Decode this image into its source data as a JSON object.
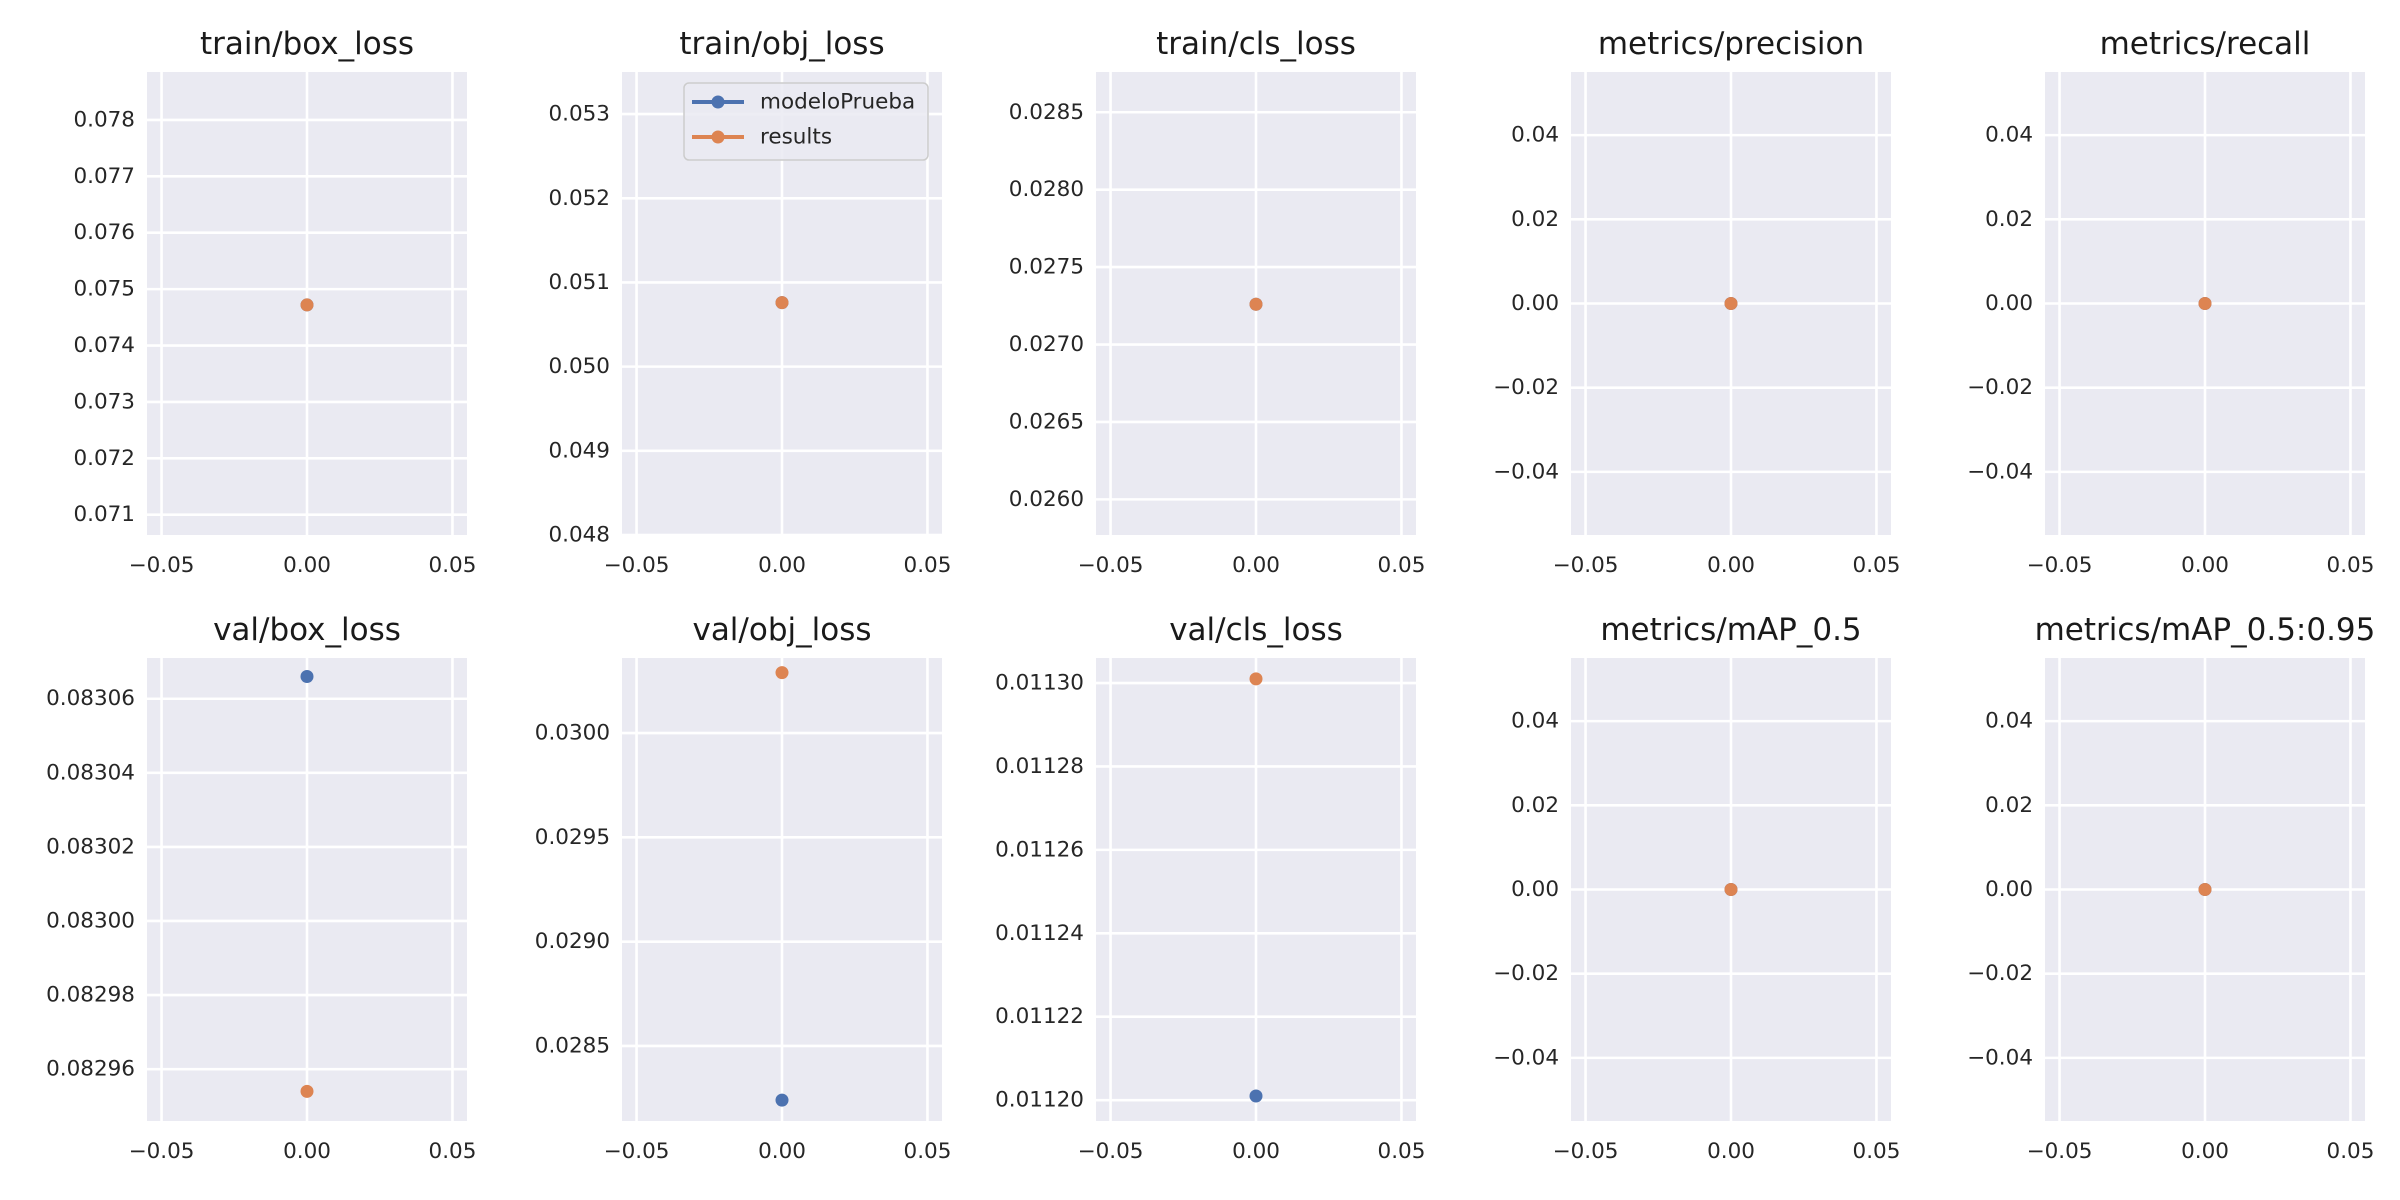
{
  "figure": {
    "facecolor": "#ffffff",
    "axes_facecolor": "#eaeaf2",
    "grid_color": "#ffffff"
  },
  "legend": {
    "placement": "upper-right of train/obj_loss panel",
    "entries": [
      {
        "label": "modeloPrueba",
        "color": "#4c72b0"
      },
      {
        "label": "results",
        "color": "#dd8452"
      }
    ]
  },
  "chart_data": [
    {
      "type": "line",
      "title": "train/box_loss",
      "xlim": [
        -0.055,
        0.055
      ],
      "xticks": [
        -0.05,
        0.0,
        0.05
      ],
      "xtick_labels": [
        "−0.05",
        "0.00",
        "0.05"
      ],
      "ylim": [
        0.07064,
        0.07885
      ],
      "yticks": [
        0.071,
        0.072,
        0.073,
        0.074,
        0.075,
        0.076,
        0.077,
        0.078
      ],
      "ytick_labels": [
        "0.071",
        "0.072",
        "0.073",
        "0.074",
        "0.075",
        "0.076",
        "0.077",
        "0.078"
      ],
      "grid": true,
      "series": [
        {
          "name": "modeloPrueba",
          "color": "#4c72b0",
          "x": [
            0
          ],
          "y": [
            0.07472
          ]
        },
        {
          "name": "results",
          "color": "#dd8452",
          "x": [
            0
          ],
          "y": [
            0.07472
          ]
        }
      ]
    },
    {
      "type": "line",
      "title": "train/obj_loss",
      "xlim": [
        -0.055,
        0.055
      ],
      "xticks": [
        -0.05,
        0.0,
        0.05
      ],
      "xtick_labels": [
        "−0.05",
        "0.00",
        "0.05"
      ],
      "ylim": [
        0.048,
        0.0535
      ],
      "yticks": [
        0.048,
        0.049,
        0.05,
        0.051,
        0.052,
        0.053
      ],
      "ytick_labels": [
        "0.048",
        "0.049",
        "0.050",
        "0.051",
        "0.052",
        "0.053"
      ],
      "grid": true,
      "series": [
        {
          "name": "modeloPrueba",
          "color": "#4c72b0",
          "x": [
            0
          ],
          "y": [
            0.05076
          ]
        },
        {
          "name": "results",
          "color": "#dd8452",
          "x": [
            0
          ],
          "y": [
            0.05076
          ]
        }
      ]
    },
    {
      "type": "line",
      "title": "train/cls_loss",
      "xlim": [
        -0.055,
        0.055
      ],
      "xticks": [
        -0.05,
        0.0,
        0.05
      ],
      "xtick_labels": [
        "−0.05",
        "0.00",
        "0.05"
      ],
      "ylim": [
        0.02577,
        0.02876
      ],
      "yticks": [
        0.026,
        0.0265,
        0.027,
        0.0275,
        0.028,
        0.0285
      ],
      "ytick_labels": [
        "0.0260",
        "0.0265",
        "0.0270",
        "0.0275",
        "0.0280",
        "0.0285"
      ],
      "grid": true,
      "series": [
        {
          "name": "modeloPrueba",
          "color": "#4c72b0",
          "x": [
            0
          ],
          "y": [
            0.02726
          ]
        },
        {
          "name": "results",
          "color": "#dd8452",
          "x": [
            0
          ],
          "y": [
            0.02726
          ]
        }
      ]
    },
    {
      "type": "line",
      "title": "metrics/precision",
      "xlim": [
        -0.055,
        0.055
      ],
      "xticks": [
        -0.05,
        0.0,
        0.05
      ],
      "xtick_labels": [
        "−0.05",
        "0.00",
        "0.05"
      ],
      "ylim": [
        -0.055,
        0.055
      ],
      "yticks": [
        -0.04,
        -0.02,
        0.0,
        0.02,
        0.04
      ],
      "ytick_labels": [
        "−0.04",
        "−0.02",
        "0.00",
        "0.02",
        "0.04"
      ],
      "grid": true,
      "series": [
        {
          "name": "modeloPrueba",
          "color": "#4c72b0",
          "x": [
            0
          ],
          "y": [
            0.0
          ]
        },
        {
          "name": "results",
          "color": "#dd8452",
          "x": [
            0
          ],
          "y": [
            0.0
          ]
        }
      ]
    },
    {
      "type": "line",
      "title": "metrics/recall",
      "xlim": [
        -0.055,
        0.055
      ],
      "xticks": [
        -0.05,
        0.0,
        0.05
      ],
      "xtick_labels": [
        "−0.05",
        "0.00",
        "0.05"
      ],
      "ylim": [
        -0.055,
        0.055
      ],
      "yticks": [
        -0.04,
        -0.02,
        0.0,
        0.02,
        0.04
      ],
      "ytick_labels": [
        "−0.04",
        "−0.02",
        "0.00",
        "0.02",
        "0.04"
      ],
      "grid": true,
      "series": [
        {
          "name": "modeloPrueba",
          "color": "#4c72b0",
          "x": [
            0
          ],
          "y": [
            0.0
          ]
        },
        {
          "name": "results",
          "color": "#dd8452",
          "x": [
            0
          ],
          "y": [
            0.0
          ]
        }
      ]
    },
    {
      "type": "line",
      "title": "val/box_loss",
      "xlim": [
        -0.055,
        0.055
      ],
      "xticks": [
        -0.05,
        0.0,
        0.05
      ],
      "xtick_labels": [
        "−0.05",
        "0.00",
        "0.05"
      ],
      "ylim": [
        0.082946,
        0.083071
      ],
      "yticks": [
        0.08296,
        0.08298,
        0.083,
        0.08302,
        0.08304,
        0.08306
      ],
      "ytick_labels": [
        "0.08296",
        "0.08298",
        "0.08300",
        "0.08302",
        "0.08304",
        "0.08306"
      ],
      "grid": true,
      "series": [
        {
          "name": "modeloPrueba",
          "color": "#4c72b0",
          "x": [
            0
          ],
          "y": [
            0.083066
          ]
        },
        {
          "name": "results",
          "color": "#dd8452",
          "x": [
            0
          ],
          "y": [
            0.082954
          ]
        }
      ]
    },
    {
      "type": "line",
      "title": "val/obj_loss",
      "xlim": [
        -0.055,
        0.055
      ],
      "xticks": [
        -0.05,
        0.0,
        0.05
      ],
      "xtick_labels": [
        "−0.05",
        "0.00",
        "0.05"
      ],
      "ylim": [
        0.02814,
        0.03036
      ],
      "yticks": [
        0.0285,
        0.029,
        0.0295,
        0.03
      ],
      "ytick_labels": [
        "0.0285",
        "0.0290",
        "0.0295",
        "0.0300"
      ],
      "grid": true,
      "series": [
        {
          "name": "modeloPrueba",
          "color": "#4c72b0",
          "x": [
            0
          ],
          "y": [
            0.02824
          ]
        },
        {
          "name": "results",
          "color": "#dd8452",
          "x": [
            0
          ],
          "y": [
            0.03029
          ]
        }
      ]
    },
    {
      "type": "line",
      "title": "val/cls_loss",
      "xlim": [
        -0.055,
        0.055
      ],
      "xticks": [
        -0.05,
        0.0,
        0.05
      ],
      "xtick_labels": [
        "−0.05",
        "0.00",
        "0.05"
      ],
      "ylim": [
        0.011195,
        0.011306
      ],
      "yticks": [
        0.0112,
        0.01122,
        0.01124,
        0.01126,
        0.01128,
        0.0113
      ],
      "ytick_labels": [
        "0.01120",
        "0.01122",
        "0.01124",
        "0.01126",
        "0.01128",
        "0.01130"
      ],
      "grid": true,
      "series": [
        {
          "name": "modeloPrueba",
          "color": "#4c72b0",
          "x": [
            0
          ],
          "y": [
            0.011201
          ]
        },
        {
          "name": "results",
          "color": "#dd8452",
          "x": [
            0
          ],
          "y": [
            0.011301
          ]
        }
      ]
    },
    {
      "type": "line",
      "title": "metrics/mAP_0.5",
      "xlim": [
        -0.055,
        0.055
      ],
      "xticks": [
        -0.05,
        0.0,
        0.05
      ],
      "xtick_labels": [
        "−0.05",
        "0.00",
        "0.05"
      ],
      "ylim": [
        -0.055,
        0.055
      ],
      "yticks": [
        -0.04,
        -0.02,
        0.0,
        0.02,
        0.04
      ],
      "ytick_labels": [
        "−0.04",
        "−0.02",
        "0.00",
        "0.02",
        "0.04"
      ],
      "grid": true,
      "series": [
        {
          "name": "modeloPrueba",
          "color": "#4c72b0",
          "x": [
            0
          ],
          "y": [
            0.0
          ]
        },
        {
          "name": "results",
          "color": "#dd8452",
          "x": [
            0
          ],
          "y": [
            0.0
          ]
        }
      ]
    },
    {
      "type": "line",
      "title": "metrics/mAP_0.5:0.95",
      "xlim": [
        -0.055,
        0.055
      ],
      "xticks": [
        -0.05,
        0.0,
        0.05
      ],
      "xtick_labels": [
        "−0.05",
        "0.00",
        "0.05"
      ],
      "ylim": [
        -0.055,
        0.055
      ],
      "yticks": [
        -0.04,
        -0.02,
        0.0,
        0.02,
        0.04
      ],
      "ytick_labels": [
        "−0.04",
        "−0.02",
        "0.00",
        "0.02",
        "0.04"
      ],
      "grid": true,
      "series": [
        {
          "name": "modeloPrueba",
          "color": "#4c72b0",
          "x": [
            0
          ],
          "y": [
            0.0
          ]
        },
        {
          "name": "results",
          "color": "#dd8452",
          "x": [
            0
          ],
          "y": [
            0.0
          ]
        }
      ]
    }
  ]
}
